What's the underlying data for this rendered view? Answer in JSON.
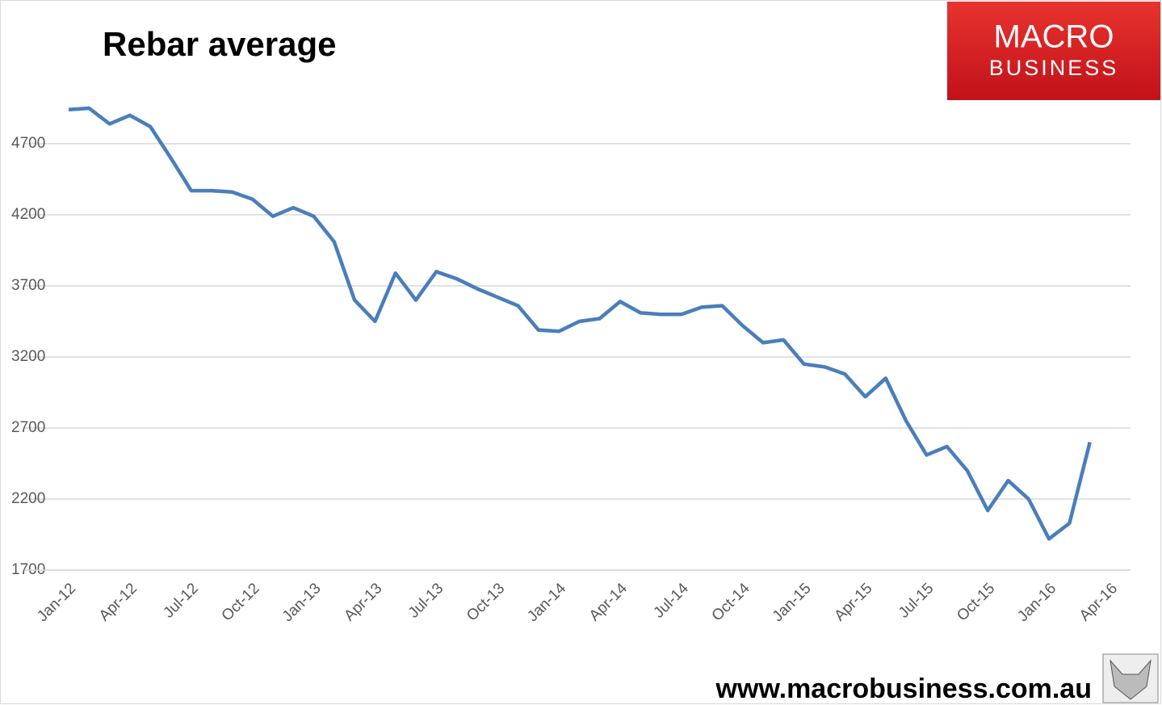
{
  "chart_data": {
    "type": "line",
    "title": "Rebar average",
    "annotations": [
      "MACRO",
      "BUSINESS",
      "www.macrobusiness.com.au"
    ],
    "x": [
      "Jan-12",
      null,
      null,
      "Apr-12",
      null,
      null,
      "Jul-12",
      null,
      null,
      "Oct-12",
      null,
      null,
      "Jan-13",
      null,
      null,
      "Apr-13",
      null,
      null,
      "Jul-13",
      null,
      null,
      "Oct-13",
      null,
      null,
      "Jan-14",
      null,
      null,
      "Apr-14",
      null,
      null,
      "Jul-14",
      null,
      null,
      "Oct-14",
      null,
      null,
      "Jan-15",
      null,
      null,
      "Apr-15",
      null,
      null,
      "Jul-15",
      null,
      null,
      "Oct-15",
      null,
      null,
      "Jan-16",
      null,
      null,
      "Apr-16"
    ],
    "series": [
      {
        "name": "Rebar average",
        "color": "#4a7ebb",
        "values": [
          4940,
          4950,
          4840,
          4900,
          4820,
          4600,
          4370,
          4370,
          4360,
          4310,
          4190,
          4250,
          4190,
          4010,
          3600,
          3450,
          3790,
          3600,
          3800,
          3750,
          3680,
          3620,
          3560,
          3390,
          3380,
          3450,
          3470,
          3590,
          3510,
          3500,
          3500,
          3550,
          3560,
          3420,
          3300,
          3320,
          3150,
          3130,
          3080,
          2920,
          3050,
          2750,
          2510,
          2570,
          2400,
          2120,
          2330,
          2200,
          1920,
          2030,
          2600,
          null
        ]
      }
    ],
    "ylim": [
      1700,
      5200
    ],
    "yticks": [
      1700,
      2200,
      2700,
      3200,
      3700,
      4200,
      4700
    ],
    "grid": true
  }
}
